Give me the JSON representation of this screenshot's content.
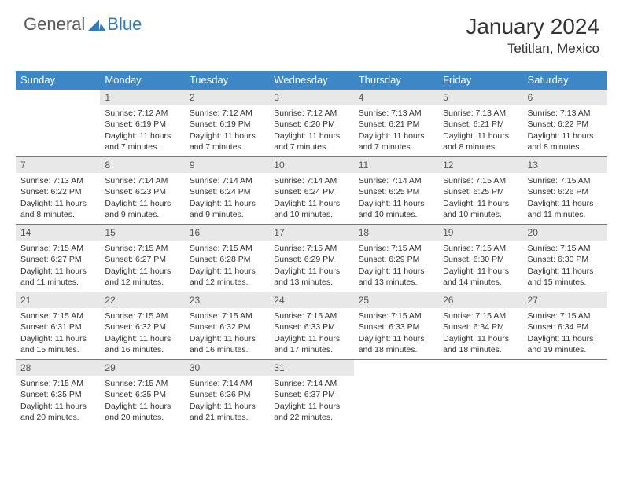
{
  "logo": {
    "general": "General",
    "blue": "Blue"
  },
  "title": "January 2024",
  "location": "Tetitlan, Mexico",
  "colors": {
    "header_bg": "#3d87c7",
    "header_text": "#ffffff",
    "daynum_bg": "#e8e8e8",
    "daynum_text": "#555555",
    "body_text": "#333333",
    "logo_gray": "#5a5a5a",
    "logo_blue": "#2f7abf",
    "cell_border": "#3d87c7"
  },
  "daynames": [
    "Sunday",
    "Monday",
    "Tuesday",
    "Wednesday",
    "Thursday",
    "Friday",
    "Saturday"
  ],
  "weeks": [
    [
      {
        "n": "",
        "sr": "",
        "ss": "",
        "dl": ""
      },
      {
        "n": "1",
        "sr": "Sunrise: 7:12 AM",
        "ss": "Sunset: 6:19 PM",
        "dl": "Daylight: 11 hours and 7 minutes."
      },
      {
        "n": "2",
        "sr": "Sunrise: 7:12 AM",
        "ss": "Sunset: 6:19 PM",
        "dl": "Daylight: 11 hours and 7 minutes."
      },
      {
        "n": "3",
        "sr": "Sunrise: 7:12 AM",
        "ss": "Sunset: 6:20 PM",
        "dl": "Daylight: 11 hours and 7 minutes."
      },
      {
        "n": "4",
        "sr": "Sunrise: 7:13 AM",
        "ss": "Sunset: 6:21 PM",
        "dl": "Daylight: 11 hours and 7 minutes."
      },
      {
        "n": "5",
        "sr": "Sunrise: 7:13 AM",
        "ss": "Sunset: 6:21 PM",
        "dl": "Daylight: 11 hours and 8 minutes."
      },
      {
        "n": "6",
        "sr": "Sunrise: 7:13 AM",
        "ss": "Sunset: 6:22 PM",
        "dl": "Daylight: 11 hours and 8 minutes."
      }
    ],
    [
      {
        "n": "7",
        "sr": "Sunrise: 7:13 AM",
        "ss": "Sunset: 6:22 PM",
        "dl": "Daylight: 11 hours and 8 minutes."
      },
      {
        "n": "8",
        "sr": "Sunrise: 7:14 AM",
        "ss": "Sunset: 6:23 PM",
        "dl": "Daylight: 11 hours and 9 minutes."
      },
      {
        "n": "9",
        "sr": "Sunrise: 7:14 AM",
        "ss": "Sunset: 6:24 PM",
        "dl": "Daylight: 11 hours and 9 minutes."
      },
      {
        "n": "10",
        "sr": "Sunrise: 7:14 AM",
        "ss": "Sunset: 6:24 PM",
        "dl": "Daylight: 11 hours and 10 minutes."
      },
      {
        "n": "11",
        "sr": "Sunrise: 7:14 AM",
        "ss": "Sunset: 6:25 PM",
        "dl": "Daylight: 11 hours and 10 minutes."
      },
      {
        "n": "12",
        "sr": "Sunrise: 7:15 AM",
        "ss": "Sunset: 6:25 PM",
        "dl": "Daylight: 11 hours and 10 minutes."
      },
      {
        "n": "13",
        "sr": "Sunrise: 7:15 AM",
        "ss": "Sunset: 6:26 PM",
        "dl": "Daylight: 11 hours and 11 minutes."
      }
    ],
    [
      {
        "n": "14",
        "sr": "Sunrise: 7:15 AM",
        "ss": "Sunset: 6:27 PM",
        "dl": "Daylight: 11 hours and 11 minutes."
      },
      {
        "n": "15",
        "sr": "Sunrise: 7:15 AM",
        "ss": "Sunset: 6:27 PM",
        "dl": "Daylight: 11 hours and 12 minutes."
      },
      {
        "n": "16",
        "sr": "Sunrise: 7:15 AM",
        "ss": "Sunset: 6:28 PM",
        "dl": "Daylight: 11 hours and 12 minutes."
      },
      {
        "n": "17",
        "sr": "Sunrise: 7:15 AM",
        "ss": "Sunset: 6:29 PM",
        "dl": "Daylight: 11 hours and 13 minutes."
      },
      {
        "n": "18",
        "sr": "Sunrise: 7:15 AM",
        "ss": "Sunset: 6:29 PM",
        "dl": "Daylight: 11 hours and 13 minutes."
      },
      {
        "n": "19",
        "sr": "Sunrise: 7:15 AM",
        "ss": "Sunset: 6:30 PM",
        "dl": "Daylight: 11 hours and 14 minutes."
      },
      {
        "n": "20",
        "sr": "Sunrise: 7:15 AM",
        "ss": "Sunset: 6:30 PM",
        "dl": "Daylight: 11 hours and 15 minutes."
      }
    ],
    [
      {
        "n": "21",
        "sr": "Sunrise: 7:15 AM",
        "ss": "Sunset: 6:31 PM",
        "dl": "Daylight: 11 hours and 15 minutes."
      },
      {
        "n": "22",
        "sr": "Sunrise: 7:15 AM",
        "ss": "Sunset: 6:32 PM",
        "dl": "Daylight: 11 hours and 16 minutes."
      },
      {
        "n": "23",
        "sr": "Sunrise: 7:15 AM",
        "ss": "Sunset: 6:32 PM",
        "dl": "Daylight: 11 hours and 16 minutes."
      },
      {
        "n": "24",
        "sr": "Sunrise: 7:15 AM",
        "ss": "Sunset: 6:33 PM",
        "dl": "Daylight: 11 hours and 17 minutes."
      },
      {
        "n": "25",
        "sr": "Sunrise: 7:15 AM",
        "ss": "Sunset: 6:33 PM",
        "dl": "Daylight: 11 hours and 18 minutes."
      },
      {
        "n": "26",
        "sr": "Sunrise: 7:15 AM",
        "ss": "Sunset: 6:34 PM",
        "dl": "Daylight: 11 hours and 18 minutes."
      },
      {
        "n": "27",
        "sr": "Sunrise: 7:15 AM",
        "ss": "Sunset: 6:34 PM",
        "dl": "Daylight: 11 hours and 19 minutes."
      }
    ],
    [
      {
        "n": "28",
        "sr": "Sunrise: 7:15 AM",
        "ss": "Sunset: 6:35 PM",
        "dl": "Daylight: 11 hours and 20 minutes."
      },
      {
        "n": "29",
        "sr": "Sunrise: 7:15 AM",
        "ss": "Sunset: 6:35 PM",
        "dl": "Daylight: 11 hours and 20 minutes."
      },
      {
        "n": "30",
        "sr": "Sunrise: 7:14 AM",
        "ss": "Sunset: 6:36 PM",
        "dl": "Daylight: 11 hours and 21 minutes."
      },
      {
        "n": "31",
        "sr": "Sunrise: 7:14 AM",
        "ss": "Sunset: 6:37 PM",
        "dl": "Daylight: 11 hours and 22 minutes."
      },
      {
        "n": "",
        "sr": "",
        "ss": "",
        "dl": ""
      },
      {
        "n": "",
        "sr": "",
        "ss": "",
        "dl": ""
      },
      {
        "n": "",
        "sr": "",
        "ss": "",
        "dl": ""
      }
    ]
  ]
}
